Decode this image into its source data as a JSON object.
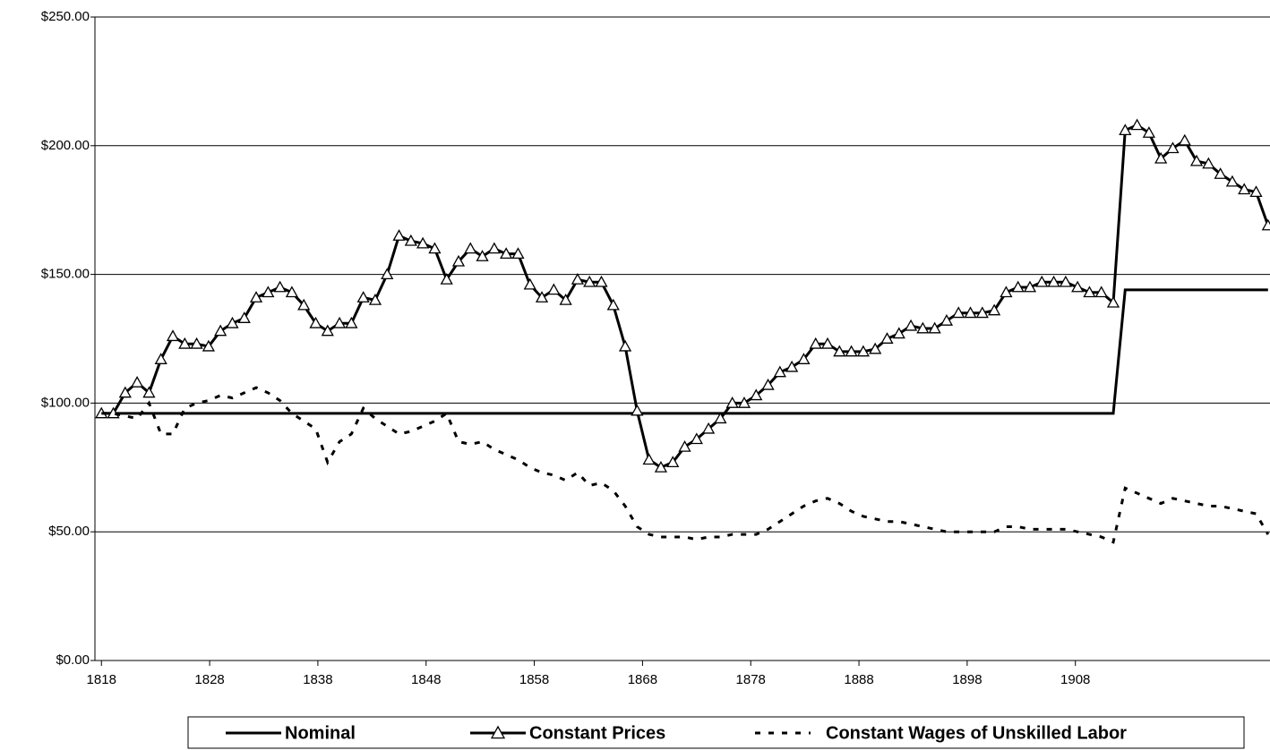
{
  "chart_data": {
    "type": "line",
    "x": [
      1818,
      1819.1,
      1820.2,
      1821.3,
      1822.4,
      1823.5,
      1824.6,
      1825.7,
      1826.8,
      1827.9,
      1829,
      1830.1,
      1831.2,
      1832.3,
      1833.4,
      1834.5,
      1835.6,
      1836.7,
      1837.8,
      1838.9,
      1840,
      1841.1,
      1842.2,
      1843.3,
      1844.4,
      1845.5,
      1846.6,
      1847.7,
      1848.8,
      1849.9,
      1851,
      1852.1,
      1853.2,
      1854.3,
      1855.4,
      1856.5,
      1857.6,
      1858.7,
      1859.8,
      1860.9,
      1862,
      1863.1,
      1864.2,
      1865.3,
      1866.4,
      1867.5,
      1868.6,
      1869.7,
      1870.8,
      1871.9,
      1873,
      1874.1,
      1875.2,
      1876.3,
      1877.4,
      1878.5,
      1879.6,
      1880.7,
      1881.8,
      1882.9,
      1884,
      1885.1,
      1886.2,
      1887.3,
      1888.4,
      1889.5,
      1890.6,
      1891.7,
      1892.8,
      1893.9,
      1895,
      1896.1,
      1897.2,
      1898.3,
      1899.4,
      1900.5,
      1901.6,
      1902.7,
      1903.8,
      1904.9,
      1906,
      1907.1,
      1908.2,
      1909.3,
      1910.4,
      1911.5,
      1912.6,
      1913.7,
      1914.8,
      1915.9,
      1917,
      1918.1,
      1919.2,
      1920.3,
      1921.4,
      1922.5,
      1923.6,
      1924.7,
      1925.8
    ],
    "series": [
      {
        "name": "Nominal",
        "color": "#000000",
        "dash": "solid",
        "values": [
          96,
          96,
          96,
          96,
          96,
          96,
          96,
          96,
          96,
          96,
          96,
          96,
          96,
          96,
          96,
          96,
          96,
          96,
          96,
          96,
          96,
          96,
          96,
          96,
          96,
          96,
          96,
          96,
          96,
          96,
          96,
          96,
          96,
          96,
          96,
          96,
          96,
          96,
          96,
          96,
          96,
          96,
          96,
          96,
          96,
          96,
          96,
          96,
          96,
          96,
          96,
          96,
          96,
          96,
          96,
          96,
          96,
          96,
          96,
          96,
          96,
          96,
          96,
          96,
          96,
          96,
          96,
          96,
          96,
          96,
          96,
          96,
          96,
          96,
          96,
          96,
          96,
          96,
          96,
          96,
          96,
          96,
          96,
          96,
          96,
          96,
          144,
          144,
          144,
          144,
          144,
          144,
          144,
          144,
          144,
          144,
          144,
          144,
          144
        ]
      },
      {
        "name": "Constant Prices",
        "color": "#000000",
        "dash": "solid",
        "marker": "triangle",
        "values": [
          96,
          96,
          104,
          108,
          104,
          117,
          126,
          123,
          123,
          122,
          128,
          131,
          133,
          141,
          143,
          145,
          143,
          138,
          131,
          128,
          131,
          131,
          141,
          140,
          150,
          165,
          163,
          162,
          160,
          148,
          155,
          160,
          157,
          160,
          158,
          158,
          146,
          141,
          144,
          140,
          148,
          147,
          147,
          138,
          122,
          97,
          78,
          75,
          77,
          83,
          86,
          90,
          94,
          100,
          100,
          103,
          107,
          112,
          114,
          117,
          123,
          123,
          120,
          120,
          120,
          121,
          125,
          127,
          130,
          129,
          129,
          132,
          135,
          135,
          135,
          136,
          143,
          145,
          145,
          147,
          147,
          147,
          145,
          143,
          143,
          139,
          206,
          208,
          205,
          195,
          199,
          202,
          194,
          193,
          189,
          186,
          183,
          182,
          169
        ]
      },
      {
        "name": "Constant Wages of Unskilled Labor",
        "color": "#000000",
        "dash": "dashed",
        "values": [
          96,
          96,
          95,
          94,
          100,
          88,
          88,
          98,
          100,
          101,
          103,
          102,
          104,
          106,
          104,
          101,
          96,
          93,
          90,
          77,
          85,
          88,
          98,
          94,
          91,
          88,
          89,
          91,
          93,
          96,
          85,
          84,
          85,
          82,
          80,
          78,
          75,
          73,
          72,
          70,
          73,
          68,
          69,
          66,
          60,
          52,
          49,
          48,
          48,
          48,
          47,
          48,
          48,
          49,
          49,
          49,
          51,
          54,
          57,
          60,
          62,
          63,
          61,
          58,
          56,
          55,
          54,
          54,
          53,
          52,
          51,
          50,
          50,
          50,
          50,
          50,
          52,
          52,
          51,
          51,
          51,
          51,
          50,
          49,
          48,
          46,
          67,
          65,
          63,
          61,
          63,
          62,
          61,
          60,
          60,
          59,
          58,
          57,
          49
        ]
      }
    ],
    "xlim": [
      1817.4,
      1925.9
    ],
    "xticks": [
      1818,
      1828,
      1838,
      1848,
      1858,
      1868,
      1878,
      1888,
      1898,
      1908
    ],
    "ylim": [
      0,
      250
    ],
    "yticks": [
      {
        "value": 0,
        "label": "$0.00"
      },
      {
        "value": 50,
        "label": "$50.00"
      },
      {
        "value": 100,
        "label": "$100.00"
      },
      {
        "value": 150,
        "label": "$150.00"
      },
      {
        "value": 200,
        "label": "$200.00"
      },
      {
        "value": 250,
        "label": "$250.00"
      }
    ],
    "grid": true,
    "legend": "bottom"
  }
}
